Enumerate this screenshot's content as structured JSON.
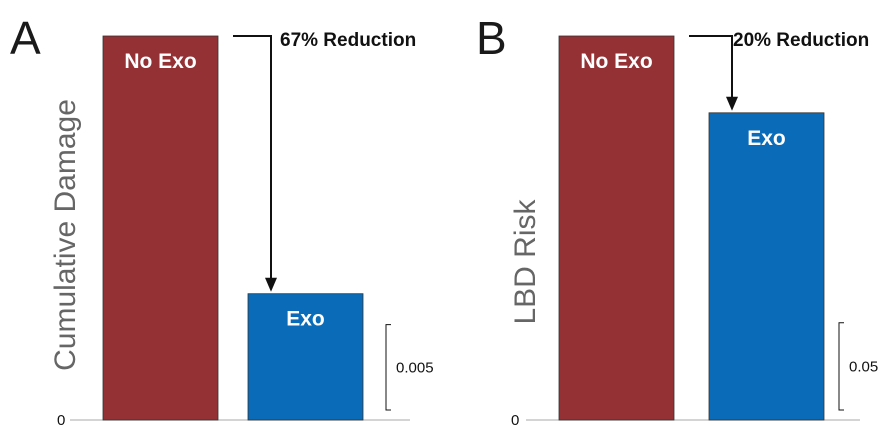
{
  "colors": {
    "no_exo": "#943134",
    "exo": "#0a6cb9",
    "axis": "#bbbbbb",
    "ink": "#111111"
  },
  "chart_data": [
    {
      "type": "bar",
      "panel": "A",
      "ylabel": "Cumulative Damage",
      "categories": [
        "No Exo",
        "Exo"
      ],
      "values": [
        0.0225,
        0.0074
      ],
      "ylim": [
        0,
        0.0225
      ],
      "zero_label": "0",
      "scale_bar": "0.005",
      "annotation": "67% Reduction",
      "grid": false
    },
    {
      "type": "bar",
      "panel": "B",
      "ylabel": "LBD Risk",
      "categories": [
        "No Exo",
        "Exo"
      ],
      "values": [
        0.22,
        0.176
      ],
      "ylim": [
        0,
        0.22
      ],
      "zero_label": "0",
      "scale_bar": "0.05",
      "annotation": "20% Reduction",
      "grid": false
    }
  ]
}
